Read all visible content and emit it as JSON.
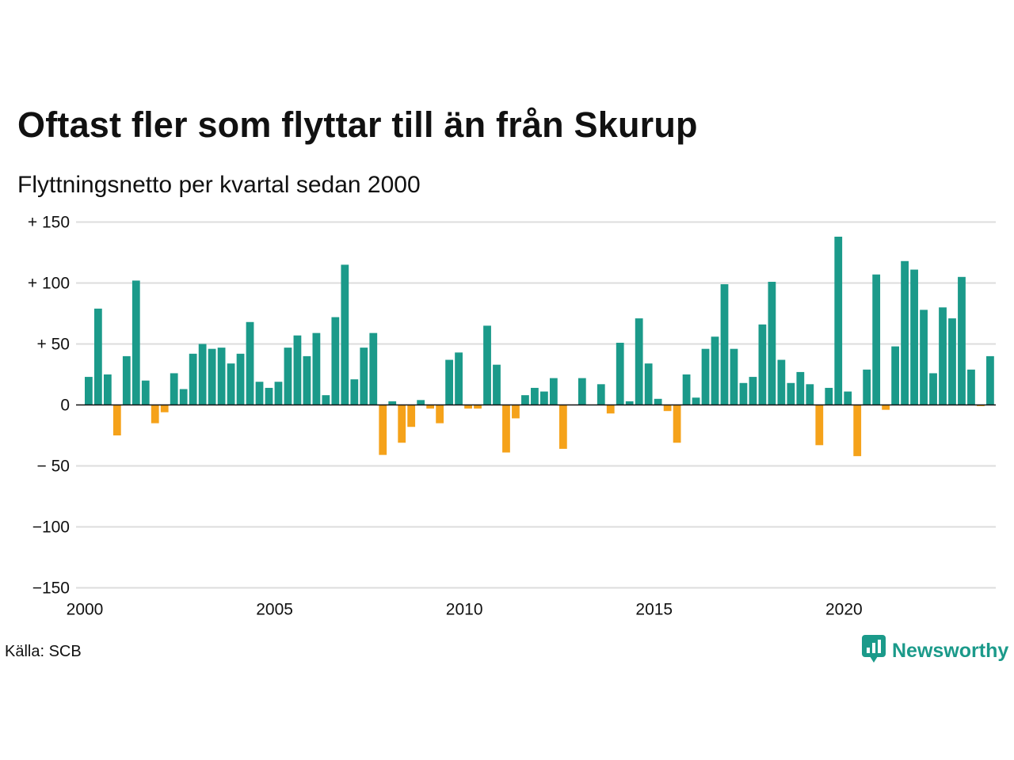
{
  "title": "Oftast fler som flyttar till än från Skurup",
  "subtitle": "Flyttningsnetto per kvartal sedan 2000",
  "source": "Källa: SCB",
  "brand": {
    "name": "Newsworthy",
    "icon": "newsworthy-logo-icon"
  },
  "colors": {
    "positive": "#1b9a8a",
    "negative": "#f5a21a",
    "grid": "#dddddd",
    "zero_line": "#111111"
  },
  "chart_data": {
    "type": "bar",
    "ylim": [
      -150,
      150
    ],
    "y_ticks": [
      {
        "value": 150,
        "label": "+ 150"
      },
      {
        "value": 100,
        "label": "+ 100"
      },
      {
        "value": 50,
        "label": "+  50"
      },
      {
        "value": 0,
        "label": "0"
      },
      {
        "value": -50,
        "label": "− 50"
      },
      {
        "value": -100,
        "label": "−100"
      },
      {
        "value": -150,
        "label": "−150"
      }
    ],
    "x_ticks": [
      "2000",
      "2005",
      "2010",
      "2015",
      "2020"
    ],
    "grid": true,
    "categories": [
      "2000 K1",
      "2000 K2",
      "2000 K3",
      "2000 K4",
      "2001 K1",
      "2001 K2",
      "2001 K3",
      "2001 K4",
      "2002 K1",
      "2002 K2",
      "2002 K3",
      "2002 K4",
      "2003 K1",
      "2003 K2",
      "2003 K3",
      "2003 K4",
      "2004 K1",
      "2004 K2",
      "2004 K3",
      "2004 K4",
      "2005 K1",
      "2005 K2",
      "2005 K3",
      "2005 K4",
      "2006 K1",
      "2006 K2",
      "2006 K3",
      "2006 K4",
      "2007 K1",
      "2007 K2",
      "2007 K3",
      "2007 K4",
      "2008 K1",
      "2008 K2",
      "2008 K3",
      "2008 K4",
      "2009 K1",
      "2009 K2",
      "2009 K3",
      "2009 K4",
      "2010 K1",
      "2010 K2",
      "2010 K3",
      "2010 K4",
      "2011 K1",
      "2011 K2",
      "2011 K3",
      "2011 K4",
      "2012 K1",
      "2012 K2",
      "2012 K3",
      "2012 K4",
      "2013 K1",
      "2013 K2",
      "2013 K3",
      "2013 K4",
      "2014 K1",
      "2014 K2",
      "2014 K3",
      "2014 K4",
      "2015 K1",
      "2015 K2",
      "2015 K3",
      "2015 K4",
      "2016 K1",
      "2016 K2",
      "2016 K3",
      "2016 K4",
      "2017 K1",
      "2017 K2",
      "2017 K3",
      "2017 K4",
      "2018 K1",
      "2018 K2",
      "2018 K3",
      "2018 K4",
      "2019 K1",
      "2019 K2",
      "2019 K3",
      "2019 K4",
      "2020 K1",
      "2020 K2",
      "2020 K3",
      "2020 K4",
      "2021 K1",
      "2021 K2",
      "2021 K3",
      "2021 K4",
      "2022 K1",
      "2022 K2",
      "2022 K3",
      "2022 K4",
      "2023 K1",
      "2023 K2",
      "2023 K3",
      "2023 K4"
    ],
    "values": [
      23,
      79,
      25,
      -25,
      40,
      102,
      20,
      -15,
      -6,
      26,
      13,
      42,
      50,
      46,
      47,
      34,
      42,
      68,
      19,
      14,
      19,
      47,
      57,
      40,
      59,
      8,
      72,
      115,
      21,
      47,
      59,
      -41,
      3,
      -31,
      -18,
      4,
      -3,
      -15,
      37,
      43,
      -3,
      -3,
      65,
      33,
      -39,
      -11,
      8,
      14,
      11,
      22,
      -36,
      0,
      22,
      0,
      17,
      -7,
      51,
      3,
      71,
      34,
      5,
      -5,
      -31,
      25,
      6,
      46,
      56,
      99,
      46,
      18,
      23,
      66,
      101,
      37,
      18,
      27,
      17,
      -33,
      14,
      138,
      11,
      -42,
      29,
      107,
      -4,
      48,
      118,
      111,
      78,
      26,
      80,
      71,
      105,
      29,
      -1,
      40
    ]
  }
}
